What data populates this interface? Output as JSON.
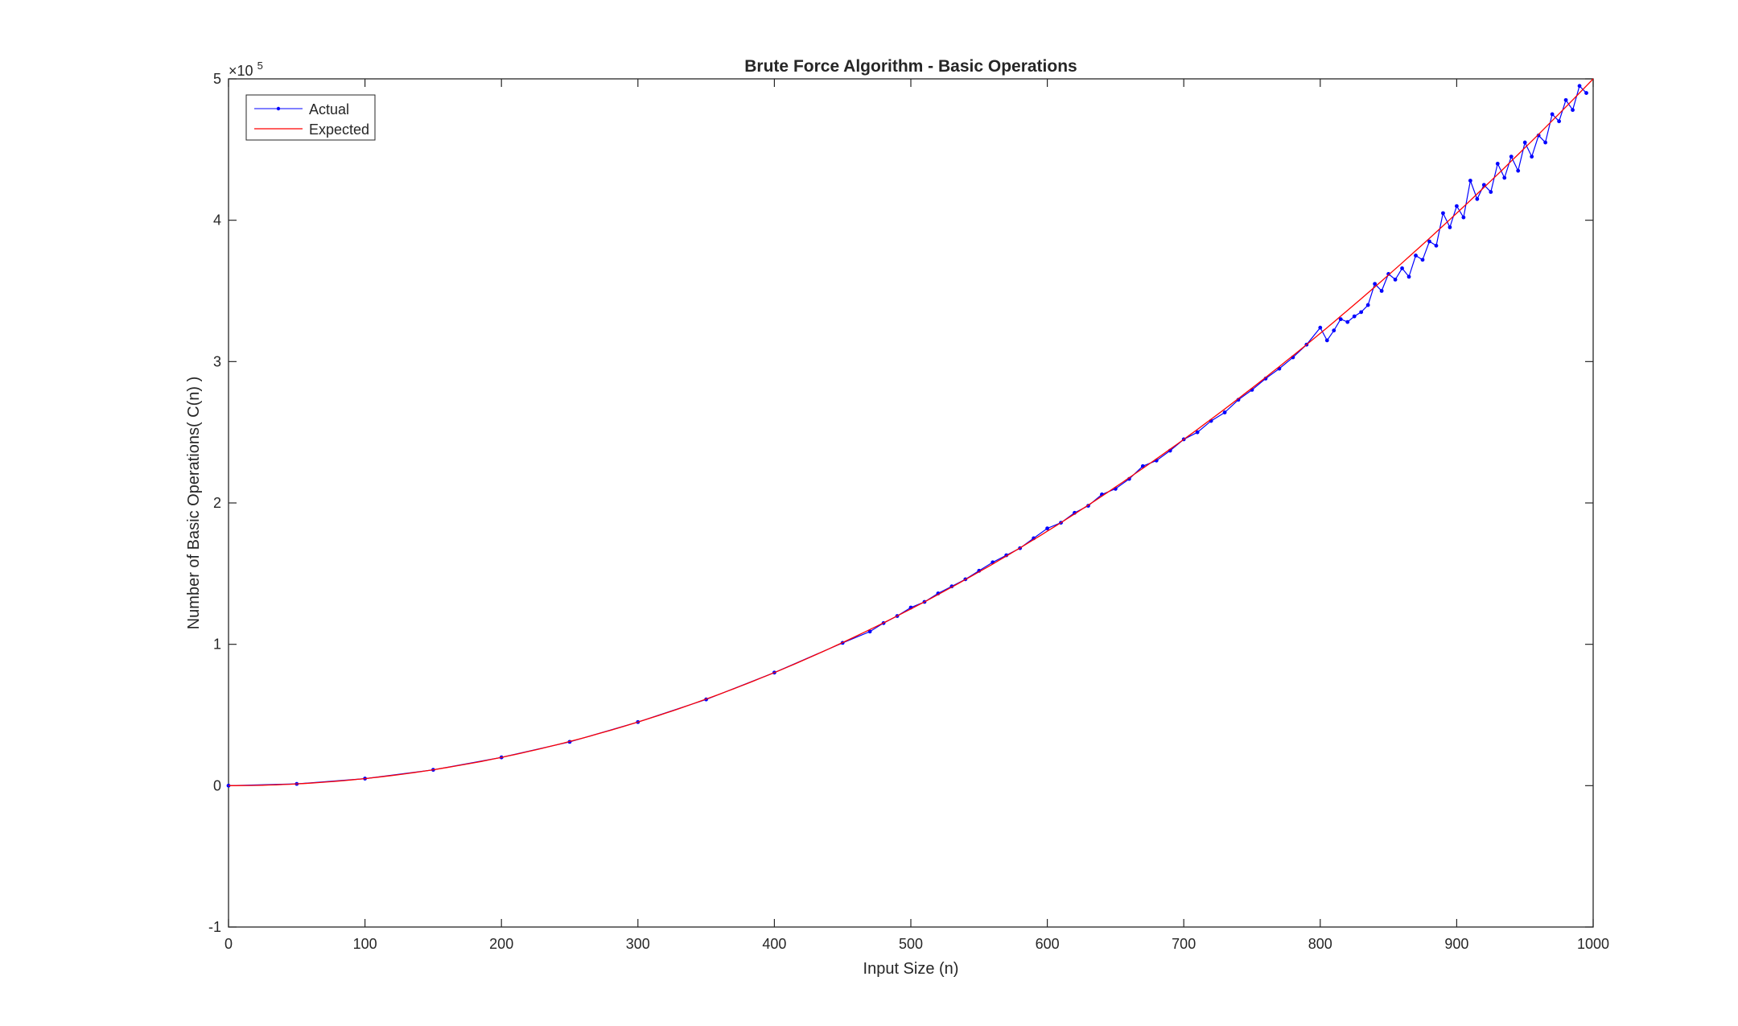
{
  "chart_data": {
    "type": "line",
    "title": "Brute Force Algorithm - Basic Operations",
    "xlabel": "Input Size (n)",
    "ylabel": "Number of Basic Operations( C(n) )",
    "exponent_base": "×10",
    "exponent_power": "5",
    "xlim": [
      0,
      1000
    ],
    "ylim": [
      -1,
      5
    ],
    "x_ticks": [
      0,
      100,
      200,
      300,
      400,
      500,
      600,
      700,
      800,
      900,
      1000
    ],
    "y_ticks": [
      -1,
      0,
      1,
      2,
      3,
      4,
      5
    ],
    "y_scale_note": "y values in units of 10^5",
    "grid": false,
    "legend_position": "top-left",
    "series": [
      {
        "name": "Actual",
        "color": "#0000ff",
        "marker": "dot",
        "x": [
          0,
          50,
          100,
          150,
          200,
          250,
          300,
          350,
          400,
          450,
          470,
          480,
          490,
          500,
          510,
          520,
          530,
          540,
          550,
          560,
          570,
          580,
          590,
          600,
          610,
          620,
          630,
          640,
          650,
          660,
          670,
          680,
          690,
          700,
          710,
          720,
          730,
          740,
          750,
          760,
          770,
          780,
          790,
          800,
          805,
          810,
          815,
          820,
          825,
          830,
          835,
          840,
          845,
          850,
          855,
          860,
          865,
          870,
          875,
          880,
          885,
          890,
          895,
          900,
          905,
          910,
          915,
          920,
          925,
          930,
          935,
          940,
          945,
          950,
          955,
          960,
          965,
          970,
          975,
          980,
          985,
          990,
          995
        ],
        "y": [
          0,
          0.0125,
          0.05,
          0.112,
          0.2,
          0.31,
          0.45,
          0.61,
          0.8,
          1.01,
          1.09,
          1.15,
          1.2,
          1.26,
          1.3,
          1.36,
          1.41,
          1.46,
          1.52,
          1.58,
          1.63,
          1.68,
          1.75,
          1.82,
          1.86,
          1.93,
          1.98,
          2.06,
          2.1,
          2.17,
          2.26,
          2.3,
          2.37,
          2.45,
          2.5,
          2.58,
          2.64,
          2.73,
          2.8,
          2.88,
          2.95,
          3.03,
          3.12,
          3.24,
          3.15,
          3.22,
          3.3,
          3.28,
          3.32,
          3.35,
          3.4,
          3.55,
          3.5,
          3.62,
          3.58,
          3.66,
          3.6,
          3.75,
          3.72,
          3.85,
          3.82,
          4.05,
          3.95,
          4.1,
          4.02,
          4.28,
          4.15,
          4.25,
          4.2,
          4.4,
          4.3,
          4.45,
          4.35,
          4.55,
          4.45,
          4.6,
          4.55,
          4.75,
          4.7,
          4.85,
          4.78,
          4.95,
          4.9
        ]
      },
      {
        "name": "Expected",
        "color": "#ff0000",
        "function": "n^2/2",
        "x": [
          0,
          100,
          200,
          300,
          400,
          500,
          600,
          700,
          800,
          900,
          1000
        ],
        "y": [
          0,
          0.05,
          0.2,
          0.45,
          0.8,
          1.25,
          1.8,
          2.45,
          3.2,
          4.05,
          5.0
        ]
      }
    ]
  }
}
